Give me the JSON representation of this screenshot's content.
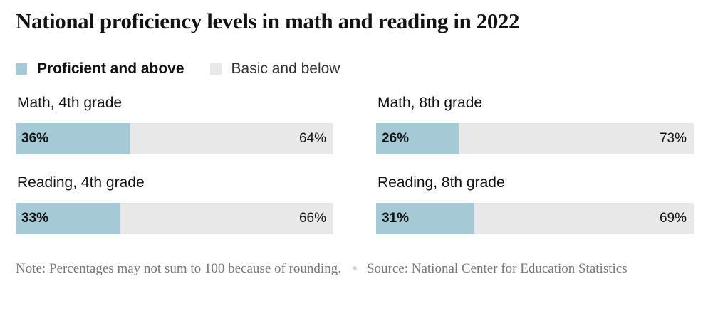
{
  "colors": {
    "proficient": "#a6c9d6",
    "basic": "#e8e8e8"
  },
  "chart_data": {
    "type": "bar",
    "orientation": "horizontal",
    "stacked": true,
    "title": "National proficiency levels in math and reading in 2022",
    "legend": {
      "placement": "top-left",
      "entries": [
        "Proficient and above",
        "Basic and below"
      ]
    },
    "unit": "%",
    "panels": [
      {
        "label": "Math, 4th grade",
        "proficient": 36,
        "basic": 64,
        "proficient_label": "36%",
        "basic_label": "64%"
      },
      {
        "label": "Math, 8th grade",
        "proficient": 26,
        "basic": 73,
        "proficient_label": "26%",
        "basic_label": "73%"
      },
      {
        "label": "Reading, 4th grade",
        "proficient": 33,
        "basic": 66,
        "proficient_label": "33%",
        "basic_label": "66%"
      },
      {
        "label": "Reading, 8th grade",
        "proficient": 31,
        "basic": 69,
        "proficient_label": "31%",
        "basic_label": "69%"
      }
    ],
    "note": "Note: Percentages may not sum to 100 because of rounding.",
    "source": "Source: National Center for Education Statistics"
  }
}
